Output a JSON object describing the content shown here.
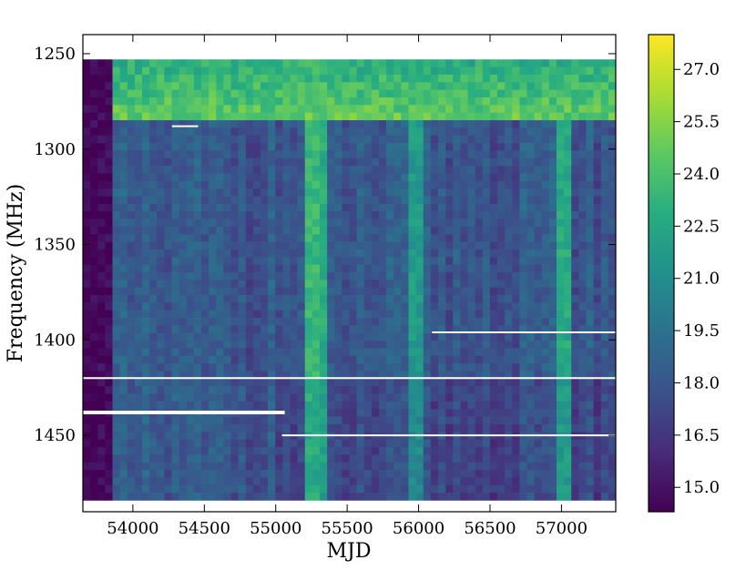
{
  "chart_data": {
    "type": "heatmap",
    "title": "",
    "xlabel": "MJD",
    "ylabel": "Frequency (MHz)",
    "xlim": [
      53650,
      57380
    ],
    "ylim": [
      1490,
      1240
    ],
    "data_extent": {
      "x": [
        53650,
        57380
      ],
      "y": [
        1253,
        1484
      ]
    },
    "x_ticks": [
      54000,
      54500,
      55000,
      55500,
      56000,
      56500,
      57000
    ],
    "x_tick_labels": [
      "54000",
      "54500",
      "55000",
      "55500",
      "56000",
      "56500",
      "57000"
    ],
    "y_ticks": [
      1250,
      1300,
      1350,
      1400,
      1450
    ],
    "y_tick_labels": [
      "1250",
      "1300",
      "1350",
      "1400",
      "1450"
    ],
    "colorbar": {
      "colormap": "viridis",
      "vmin": 14.3,
      "vmax": 28.0,
      "ticks": [
        15.0,
        16.5,
        18.0,
        19.5,
        21.0,
        22.5,
        24.0,
        25.5,
        27.0
      ],
      "tick_labels": [
        "15.0",
        "16.5",
        "18.0",
        "19.5",
        "21.0",
        "22.5",
        "24.0",
        "25.5",
        "27.0"
      ]
    },
    "background_model": {
      "base_value": 18.0,
      "low_mjd_limit": 53880,
      "low_value": 14.4,
      "band_top_mhz": 1283,
      "band_top_value": 23.5
    },
    "bright_columns": [
      {
        "mjd": 55270,
        "value": 23.5
      },
      {
        "mjd": 55300,
        "value": 22.8
      },
      {
        "mjd": 55980,
        "value": 21.8
      },
      {
        "mjd": 57020,
        "value": 22.6
      },
      {
        "mjd": 57040,
        "value": 22.0
      }
    ],
    "masked_lines": [
      {
        "mhz": 1420,
        "mjd_start": 53650,
        "mjd_end": 57380
      },
      {
        "mhz": 1438,
        "mjd_start": 53650,
        "mjd_end": 55050
      },
      {
        "mhz": 1450,
        "mjd_start": 55050,
        "mjd_end": 57380
      },
      {
        "mhz": 1396,
        "mjd_start": 56100,
        "mjd_end": 57380
      },
      {
        "mhz": 1288,
        "mjd_start": 54280,
        "mjd_end": 54450
      }
    ]
  },
  "colors": {
    "masked": "#ffffff",
    "axis": "#000000",
    "viridis": [
      "#440154",
      "#472c7a",
      "#3b518b",
      "#2c718e",
      "#21908d",
      "#27ad81",
      "#5cc863",
      "#aadc32",
      "#fde725"
    ]
  }
}
